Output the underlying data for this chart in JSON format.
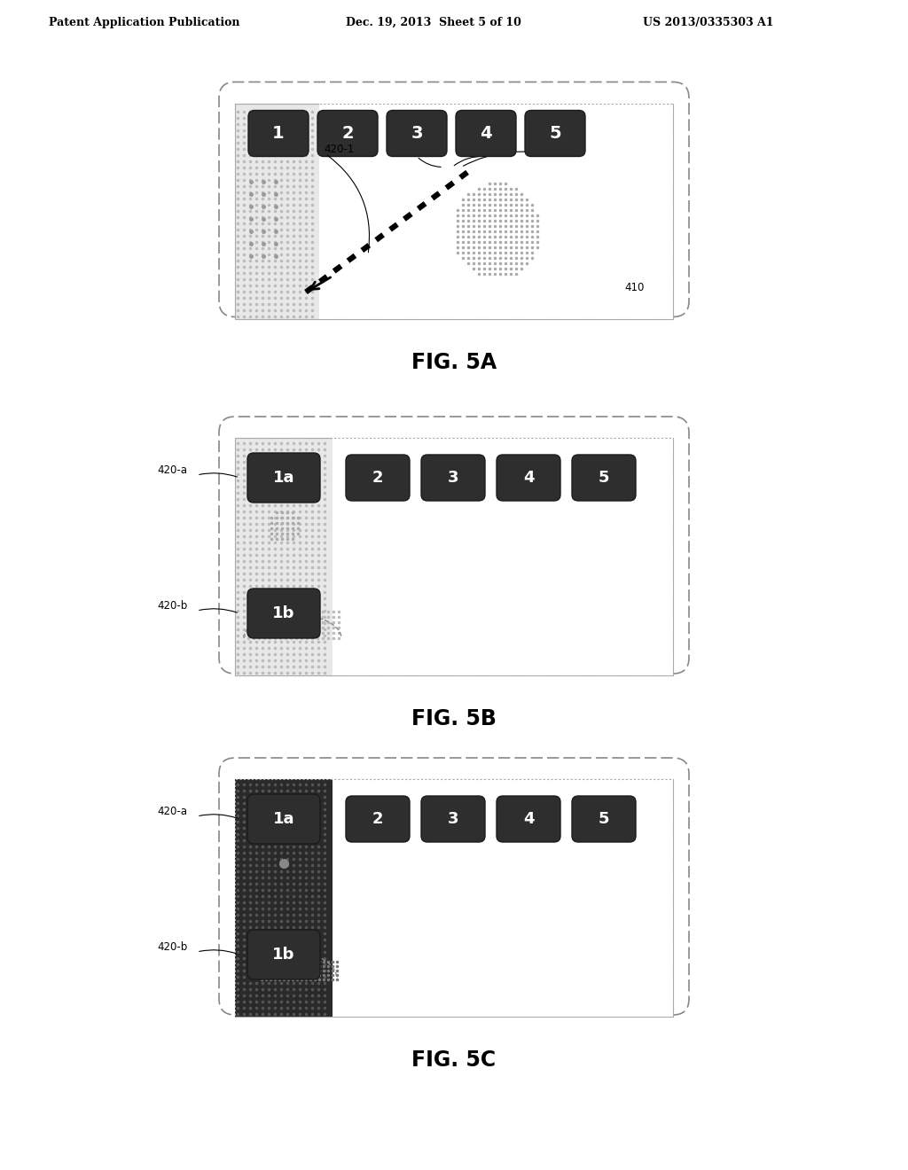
{
  "header_left": "Patent Application Publication",
  "header_middle": "Dec. 19, 2013  Sheet 5 of 10",
  "header_right": "US 2013/0335303 A1",
  "fig5a_label": "FIG. 5A",
  "fig5b_label": "FIG. 5B",
  "fig5c_label": "FIG. 5C",
  "bg_color": "#ffffff",
  "annotation_420_1": "420-1",
  "annotation_410": "410",
  "annotation_420a": "420-a",
  "annotation_420b": "420-b"
}
